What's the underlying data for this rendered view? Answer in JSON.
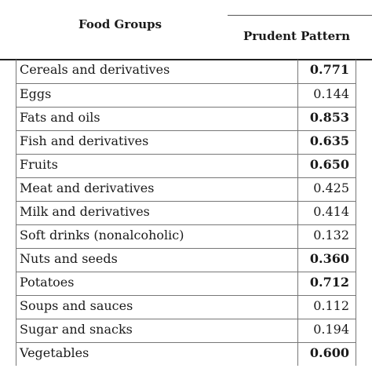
{
  "table": {
    "header": {
      "food_groups": "Food Groups",
      "pattern": "Prudent Pattern"
    },
    "rows": [
      {
        "food": "Cereals and derivatives",
        "value": "0.771",
        "bold": true
      },
      {
        "food": "Eggs",
        "value": "0.144",
        "bold": false
      },
      {
        "food": "Fats and oils",
        "value": "0.853",
        "bold": true
      },
      {
        "food": "Fish and derivatives",
        "value": "0.635",
        "bold": true
      },
      {
        "food": "Fruits",
        "value": "0.650",
        "bold": true
      },
      {
        "food": "Meat and derivatives",
        "value": "0.425",
        "bold": false
      },
      {
        "food": "Milk and derivatives",
        "value": "0.414",
        "bold": false
      },
      {
        "food": "Soft drinks (nonalcoholic)",
        "value": "0.132",
        "bold": false
      },
      {
        "food": "Nuts and seeds",
        "value": "0.360",
        "bold": true
      },
      {
        "food": "Potatoes",
        "value": "0.712",
        "bold": true
      },
      {
        "food": "Soups and sauces",
        "value": "0.112",
        "bold": false
      },
      {
        "food": "Sugar and snacks",
        "value": "0.194",
        "bold": false
      },
      {
        "food": "Vegetables",
        "value": "0.600",
        "bold": true
      }
    ]
  }
}
